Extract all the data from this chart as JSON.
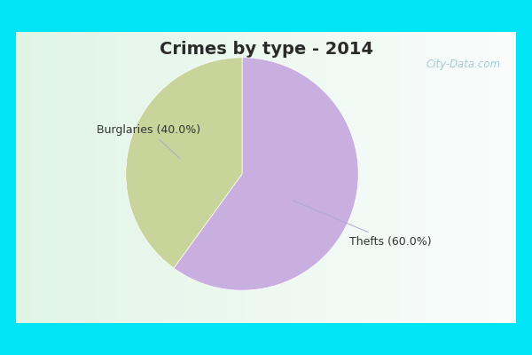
{
  "title": "Crimes by type - 2014",
  "slices": [
    {
      "label": "Thefts",
      "value": 60.0,
      "color": "#c9aee0",
      "pct": "60.0%"
    },
    {
      "label": "Burglaries",
      "value": 40.0,
      "color": "#c8d49a",
      "pct": "40.0%"
    }
  ],
  "bg_color_border": "#00e5f5",
  "bg_color_main": "#d8f0e4",
  "title_color": "#2a2a2a",
  "title_fontsize": 14,
  "label_fontsize": 9,
  "watermark": "City-Data.com",
  "border_thickness_tb": 0.09,
  "border_thickness_lr": 0.03
}
